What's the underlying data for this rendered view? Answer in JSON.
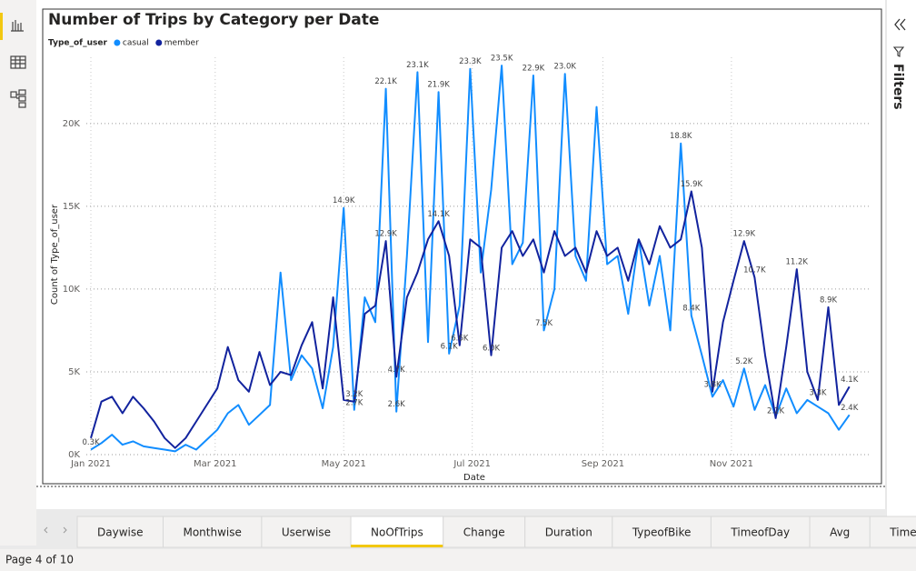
{
  "chart_data": {
    "type": "line",
    "title": "Number of Trips by Category per Date",
    "legend_title": "Type_of_user",
    "x_label": "Date",
    "y_label": "Count of Type_of_user",
    "x": [
      0,
      5,
      10,
      15,
      20,
      25,
      30,
      35,
      40,
      45,
      50,
      55,
      60,
      65,
      70,
      75,
      80,
      85,
      90,
      95,
      100,
      105,
      110,
      115,
      120,
      125,
      130,
      135,
      140,
      145,
      150,
      155,
      160,
      165,
      170,
      175,
      180,
      185,
      190,
      195,
      200,
      205,
      210,
      215,
      220,
      225,
      230,
      235,
      240,
      245,
      250,
      255,
      260,
      265,
      270,
      275,
      280,
      285,
      290,
      295,
      300,
      305,
      310,
      315,
      320,
      325,
      330,
      335,
      340,
      345,
      350,
      355,
      360
    ],
    "xlim": [
      0,
      364
    ],
    "xticks": [
      {
        "value": 0,
        "label": "Jan 2021"
      },
      {
        "value": 59,
        "label": "Mar 2021"
      },
      {
        "value": 120,
        "label": "May 2021"
      },
      {
        "value": 181,
        "label": "Jul 2021"
      },
      {
        "value": 243,
        "label": "Sep 2021"
      },
      {
        "value": 304,
        "label": "Nov 2021"
      }
    ],
    "ylim": [
      0,
      24000
    ],
    "yticks": [
      {
        "value": 0,
        "label": "0K"
      },
      {
        "value": 5000,
        "label": "5K"
      },
      {
        "value": 10000,
        "label": "10K"
      },
      {
        "value": 15000,
        "label": "15K"
      },
      {
        "value": 20000,
        "label": "20K"
      }
    ],
    "grid": true,
    "series": [
      {
        "name": "casual",
        "color": "#118dff",
        "values": [
          300,
          700,
          1200,
          600,
          800,
          500,
          400,
          300,
          200,
          600,
          300,
          900,
          1500,
          2500,
          3000,
          1800,
          2400,
          3000,
          11000,
          4500,
          6000,
          5200,
          2800,
          6500,
          14900,
          2700,
          9500,
          8000,
          22100,
          2600,
          12000,
          23100,
          6800,
          21900,
          6100,
          9000,
          23300,
          11000,
          16000,
          23500,
          11500,
          12800,
          22900,
          7500,
          10000,
          23000,
          12000,
          10500,
          21000,
          11500,
          12000,
          8500,
          13000,
          9000,
          12000,
          7500,
          18800,
          8400,
          6000,
          3500,
          4500,
          2900,
          5200,
          2700,
          4200,
          2300,
          4000,
          2500,
          3300,
          2900,
          2500,
          1500,
          2400
        ],
        "value_labels": [
          "0.3K",
          null,
          null,
          null,
          null,
          null,
          null,
          null,
          null,
          null,
          null,
          null,
          null,
          null,
          null,
          null,
          null,
          null,
          null,
          null,
          null,
          null,
          null,
          null,
          "14.9K",
          "2.7K",
          null,
          null,
          "22.1K",
          "2.6K",
          null,
          "23.1K",
          null,
          "21.9K",
          "6.1K",
          null,
          "23.3K",
          null,
          null,
          "23.5K",
          null,
          null,
          "22.9K",
          "7.5K",
          null,
          "23.0K",
          null,
          null,
          null,
          null,
          null,
          null,
          null,
          null,
          null,
          null,
          "18.8K",
          "8.4K",
          null,
          null,
          null,
          null,
          "5.2K",
          null,
          null,
          null,
          null,
          null,
          null,
          null,
          null,
          null,
          "2.4K"
        ]
      },
      {
        "name": "member",
        "color": "#12239e",
        "values": [
          1000,
          3200,
          3500,
          2500,
          3500,
          2800,
          2000,
          1000,
          400,
          1000,
          2000,
          3000,
          4000,
          6500,
          4500,
          3800,
          6200,
          4200,
          5000,
          4800,
          6600,
          8000,
          4000,
          9500,
          3300,
          3200,
          8500,
          9000,
          12900,
          4700,
          9500,
          11000,
          13000,
          14100,
          12000,
          6600,
          13000,
          12500,
          6000,
          12500,
          13500,
          12000,
          13000,
          11000,
          13500,
          12000,
          12500,
          11000,
          13500,
          12000,
          12500,
          10500,
          13000,
          11500,
          13800,
          12500,
          13000,
          15900,
          12500,
          3800,
          8000,
          10500,
          12900,
          10700,
          6000,
          2200,
          6500,
          11200,
          5000,
          3300,
          8900,
          3000,
          4100
        ],
        "value_labels": [
          null,
          null,
          null,
          null,
          null,
          null,
          null,
          null,
          null,
          null,
          null,
          null,
          null,
          null,
          null,
          null,
          null,
          null,
          null,
          null,
          null,
          null,
          null,
          null,
          null,
          "3.2K",
          null,
          null,
          "12.9K",
          "4.7K",
          null,
          null,
          null,
          "14.1K",
          null,
          "6.6K",
          null,
          null,
          "6.0K",
          null,
          null,
          null,
          null,
          null,
          null,
          null,
          null,
          null,
          null,
          null,
          null,
          null,
          null,
          null,
          null,
          null,
          null,
          "15.9K",
          null,
          "3.8K",
          null,
          null,
          "12.9K",
          "10.7K",
          null,
          "2.2K",
          null,
          "11.2K",
          null,
          "3.3K",
          "8.9K",
          null,
          "4.1K"
        ]
      }
    ]
  },
  "filters_label": "Filters",
  "tabs": [
    "Daywise",
    "Monthwise",
    "Userwise",
    "NoOfTrips",
    "Change",
    "Duration",
    "TypeofBike",
    "TimeofDay",
    "Avg",
    "Time"
  ],
  "active_tab": 3,
  "page_status": "Page 4 of 10"
}
